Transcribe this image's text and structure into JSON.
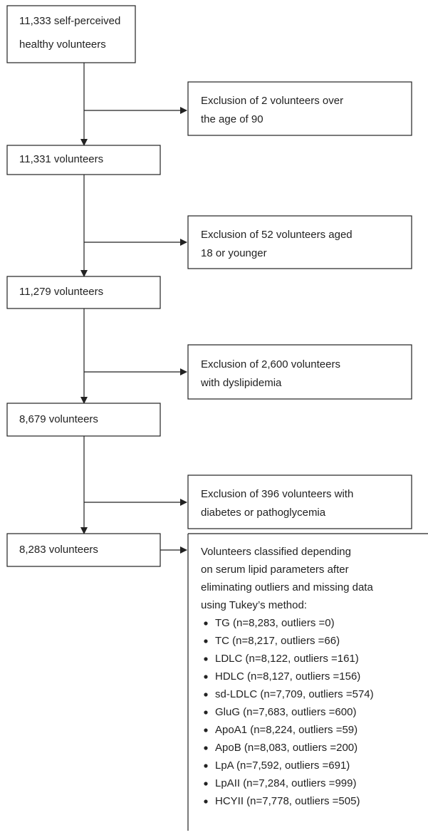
{
  "nodes": [
    {
      "lines": [
        "11,333 self-perceived",
        "healthy volunteers"
      ]
    },
    {
      "lines": [
        "11,331 volunteers"
      ]
    },
    {
      "lines": [
        "11,279 volunteers"
      ]
    },
    {
      "lines": [
        "8,679 volunteers"
      ]
    },
    {
      "lines": [
        "8,283 volunteers"
      ]
    }
  ],
  "exclusions": [
    {
      "lines": [
        "Exclusion of 2 volunteers over",
        "the age of 90"
      ]
    },
    {
      "lines": [
        "Exclusion of 52 volunteers aged",
        "18 or younger"
      ]
    },
    {
      "lines": [
        "Exclusion of 2,600 volunteers",
        "with dyslipidemia"
      ]
    },
    {
      "lines": [
        "Exclusion of 396 volunteers with",
        "diabetes or pathoglycemia"
      ]
    }
  ],
  "result": {
    "intro": [
      "Volunteers classified depending",
      "on serum lipid parameters after",
      "eliminating outliers and missing data",
      "using Tukey’s method:"
    ],
    "bullets": [
      "TG (n=8,283, outliers =0)",
      "TC (n=8,217, outliers =66)",
      "LDLC (n=8,122, outliers =161)",
      "HDLC (n=8,127, outliers =156)",
      "sd-LDLC (n=7,709, outliers =574)",
      "GluG (n=7,683, outliers =600)",
      "ApoA1 (n=8,224, outliers =59)",
      "ApoB (n=8,083, outliers =200)",
      "LpA (n=7,592, outliers =691)",
      "LpAII (n=7,284, outliers =999)",
      "HCYII (n=7,778, outliers =505)"
    ]
  }
}
